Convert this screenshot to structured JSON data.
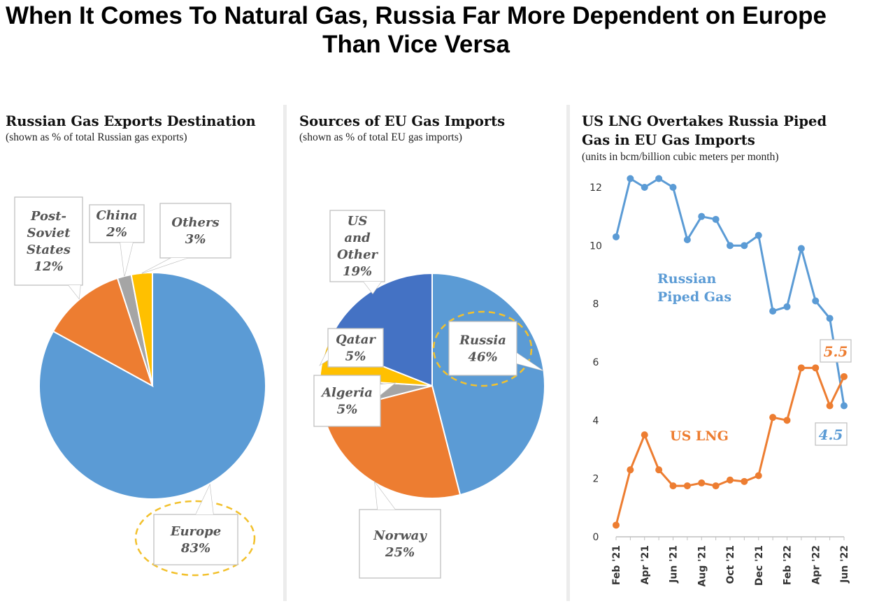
{
  "title": "When It Comes To Natural Gas, Russia Far More Dependent on Europe Than Vice Versa",
  "colors": {
    "blue": "#5b9bd5",
    "orange": "#ed7d31",
    "gray": "#a5a5a5",
    "gold": "#ffc000",
    "darkblue": "#4472c4"
  },
  "panels": [
    {
      "title": "Russian Gas Exports Destination",
      "subtitle": "(shown as % of total Russian gas exports)"
    },
    {
      "title": "Sources of EU Gas Imports",
      "subtitle": "(shown as % of total EU gas imports)"
    },
    {
      "title_line1": "US LNG Overtakes Russia Piped",
      "title_line2": "Gas in EU Gas Imports",
      "subtitle": "(units in bcm/billion cubic meters per month)"
    }
  ],
  "chart_data": [
    {
      "type": "pie",
      "title": "Russian Gas Exports Destination",
      "slices": [
        {
          "label_lines": [
            "Europe",
            "83%"
          ],
          "value": 83,
          "color": "#5b9bd5",
          "highlight": true
        },
        {
          "label_lines": [
            "Post-",
            "Soviet",
            "States",
            "12%"
          ],
          "value": 12,
          "color": "#ed7d31"
        },
        {
          "label_lines": [
            "China",
            "2%"
          ],
          "value": 2,
          "color": "#a5a5a5"
        },
        {
          "label_lines": [
            "Others",
            "3%"
          ],
          "value": 3,
          "color": "#ffc000"
        }
      ]
    },
    {
      "type": "pie",
      "title": "Sources of EU Gas Imports",
      "slices": [
        {
          "label_lines": [
            "Russia",
            "46%"
          ],
          "value": 46,
          "color": "#5b9bd5",
          "highlight": true
        },
        {
          "label_lines": [
            "Norway",
            "25%"
          ],
          "value": 25,
          "color": "#ed7d31"
        },
        {
          "label_lines": [
            "Algeria",
            "5%"
          ],
          "value": 5,
          "color": "#a5a5a5"
        },
        {
          "label_lines": [
            "Qatar",
            "5%"
          ],
          "value": 5,
          "color": "#ffc000"
        },
        {
          "label_lines": [
            "US",
            "and",
            "Other",
            "19%"
          ],
          "value": 19,
          "color": "#4472c4"
        }
      ]
    },
    {
      "type": "line",
      "title": "US LNG Overtakes Russia Piped Gas in EU Gas Imports",
      "ylabel": "bcm/billion cubic meters per month",
      "ylim": [
        0,
        12
      ],
      "yticks": [
        0,
        2,
        4,
        6,
        8,
        10,
        12
      ],
      "x_tick_labels": [
        "Feb '21",
        "Apr '21",
        "Jun '21",
        "Aug '21",
        "Oct '21",
        "Dec '21",
        "Feb '22",
        "Apr '22",
        "Jun '22"
      ],
      "x": [
        "Feb '21",
        "Mar '21",
        "Apr '21",
        "May '21",
        "Jun '21",
        "Jul '21",
        "Aug '21",
        "Sep '21",
        "Oct '21",
        "Nov '21",
        "Dec '21",
        "Jan '22",
        "Feb '22",
        "Mar '22",
        "Apr '22",
        "May '22",
        "Jun '22"
      ],
      "series": [
        {
          "name_lines": [
            "Russian",
            "Piped Gas"
          ],
          "color": "#5b9bd5",
          "end_label": "4.5",
          "values": [
            10.3,
            12.3,
            12.0,
            12.3,
            12.0,
            10.2,
            11.0,
            10.9,
            10.0,
            10.0,
            10.35,
            7.75,
            7.9,
            9.9,
            8.1,
            7.5,
            4.5
          ]
        },
        {
          "name_lines": [
            "US LNG"
          ],
          "color": "#ed7d31",
          "end_label": "5.5",
          "values": [
            0.4,
            2.3,
            3.5,
            2.3,
            1.75,
            1.75,
            1.85,
            1.75,
            1.95,
            1.9,
            2.1,
            4.1,
            4.0,
            5.8,
            5.8,
            4.5,
            5.5
          ]
        }
      ]
    }
  ]
}
